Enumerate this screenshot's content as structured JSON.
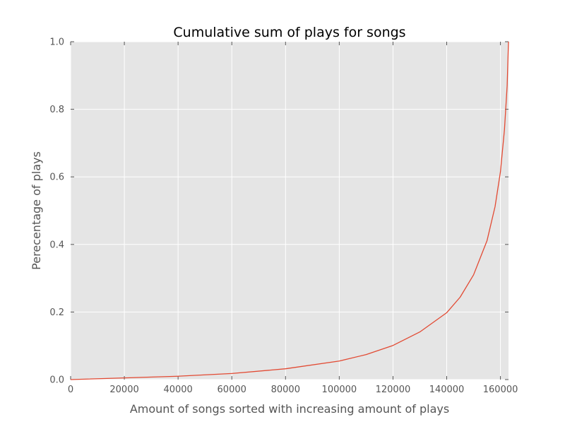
{
  "chart_data": {
    "type": "line",
    "title": "Cumulative sum of plays for songs",
    "xlabel": "Amount of songs sorted with increasing amount of plays",
    "ylabel": "Perecentage of plays",
    "xlim": [
      0,
      163000
    ],
    "ylim": [
      0.0,
      1.0
    ],
    "x_ticks": [
      0,
      20000,
      40000,
      60000,
      80000,
      100000,
      120000,
      140000,
      160000
    ],
    "x_tick_labels": [
      "0",
      "20000",
      "40000",
      "60000",
      "80000",
      "100000",
      "120000",
      "140000",
      "160000"
    ],
    "y_ticks": [
      0.0,
      0.2,
      0.4,
      0.6,
      0.8,
      1.0
    ],
    "y_tick_labels": [
      "0.0",
      "0.2",
      "0.4",
      "0.6",
      "0.8",
      "1.0"
    ],
    "grid": true,
    "colors": {
      "line": "#e24a33",
      "plot_background": "#e5e5e5",
      "grid": "#ffffff",
      "tick_text": "#555555",
      "title_text": "#000000"
    },
    "series": [
      {
        "x": [
          0,
          20000,
          40000,
          60000,
          80000,
          100000,
          110000,
          120000,
          130000,
          140000,
          145000,
          150000,
          155000,
          158000,
          160000,
          161500,
          162500,
          163000
        ],
        "y": [
          0.0,
          0.005,
          0.01,
          0.018,
          0.032,
          0.055,
          0.074,
          0.101,
          0.141,
          0.198,
          0.244,
          0.31,
          0.411,
          0.512,
          0.615,
          0.74,
          0.87,
          1.0
        ]
      }
    ]
  }
}
